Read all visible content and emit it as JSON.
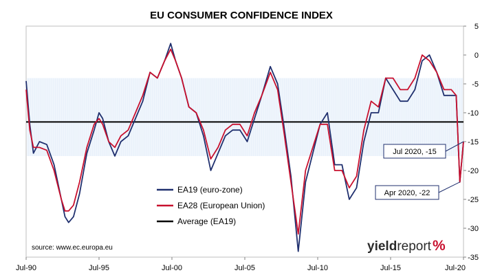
{
  "chart_data": {
    "type": "line",
    "title": "EU CONSUMER CONFIDENCE INDEX",
    "x_range": [
      "1990-07",
      "2020-07"
    ],
    "x_tick_labels": [
      "Jul-90",
      "Jul-95",
      "Jul-00",
      "Jul-05",
      "Jul-10",
      "Jul-15",
      "Jul-20"
    ],
    "x_tick_dates": [
      "1990-07",
      "1995-07",
      "2000-07",
      "2005-07",
      "2010-07",
      "2015-07",
      "2020-07"
    ],
    "ylim": [
      -35,
      5
    ],
    "y_ticks": [
      5,
      0,
      -5,
      -10,
      -15,
      -20,
      -25,
      -30,
      -35
    ],
    "y_axis_side": "right",
    "grid": false,
    "shaded_band": {
      "from": -17.5,
      "to": -4,
      "color": "#cfe0f3"
    },
    "legend": {
      "placement": "bottom-center"
    },
    "series": [
      {
        "name": "EA19 (euro-zone)",
        "color": "#1f2f6e",
        "points": [
          [
            "1990-07",
            -4.5
          ],
          [
            "1990-10",
            -12
          ],
          [
            "1991-01",
            -17
          ],
          [
            "1991-06",
            -15
          ],
          [
            "1991-12",
            -15.5
          ],
          [
            "1992-06",
            -19
          ],
          [
            "1992-12",
            -25
          ],
          [
            "1993-03",
            -28
          ],
          [
            "1993-06",
            -29
          ],
          [
            "1993-10",
            -28
          ],
          [
            "1994-03",
            -24
          ],
          [
            "1994-09",
            -17
          ],
          [
            "1995-03",
            -13
          ],
          [
            "1995-07",
            -10
          ],
          [
            "1995-10",
            -11
          ],
          [
            "1996-03",
            -15
          ],
          [
            "1996-08",
            -17.5
          ],
          [
            "1997-01",
            -15
          ],
          [
            "1997-07",
            -14
          ],
          [
            "1998-01",
            -11
          ],
          [
            "1998-07",
            -8
          ],
          [
            "1999-01",
            -3
          ],
          [
            "1999-07",
            -4
          ],
          [
            "2000-01",
            -1
          ],
          [
            "2000-06",
            2
          ],
          [
            "2000-10",
            -1
          ],
          [
            "2001-03",
            -4
          ],
          [
            "2001-09",
            -9
          ],
          [
            "2002-03",
            -10
          ],
          [
            "2002-09",
            -14
          ],
          [
            "2003-03",
            -20
          ],
          [
            "2003-09",
            -17
          ],
          [
            "2004-03",
            -14
          ],
          [
            "2004-09",
            -13
          ],
          [
            "2005-03",
            -13
          ],
          [
            "2005-09",
            -15
          ],
          [
            "2006-03",
            -11
          ],
          [
            "2006-09",
            -7
          ],
          [
            "2007-04",
            -2
          ],
          [
            "2007-10",
            -5
          ],
          [
            "2008-03",
            -12
          ],
          [
            "2008-09",
            -21
          ],
          [
            "2009-03",
            -34
          ],
          [
            "2009-09",
            -22
          ],
          [
            "2010-03",
            -17
          ],
          [
            "2010-09",
            -12
          ],
          [
            "2011-03",
            -10
          ],
          [
            "2011-09",
            -19
          ],
          [
            "2012-03",
            -19
          ],
          [
            "2012-09",
            -25
          ],
          [
            "2013-03",
            -23
          ],
          [
            "2013-09",
            -15
          ],
          [
            "2014-03",
            -10
          ],
          [
            "2014-09",
            -10
          ],
          [
            "2015-03",
            -4
          ],
          [
            "2015-09",
            -6
          ],
          [
            "2016-03",
            -8
          ],
          [
            "2016-09",
            -8
          ],
          [
            "2017-03",
            -6
          ],
          [
            "2017-09",
            -1
          ],
          [
            "2018-03",
            0
          ],
          [
            "2018-09",
            -3
          ],
          [
            "2019-03",
            -7
          ],
          [
            "2019-09",
            -7
          ],
          [
            "2020-01",
            -7
          ],
          [
            "2020-04",
            -22
          ],
          [
            "2020-07",
            -15
          ]
        ]
      },
      {
        "name": "EA28 (European Union)",
        "color": "#c8102e",
        "points": [
          [
            "1990-07",
            -6
          ],
          [
            "1990-10",
            -13
          ],
          [
            "1991-01",
            -16
          ],
          [
            "1991-06",
            -16
          ],
          [
            "1991-12",
            -16.5
          ],
          [
            "1992-06",
            -20
          ],
          [
            "1992-12",
            -25
          ],
          [
            "1993-03",
            -27
          ],
          [
            "1993-06",
            -27
          ],
          [
            "1993-10",
            -26
          ],
          [
            "1994-03",
            -22
          ],
          [
            "1994-09",
            -16
          ],
          [
            "1995-03",
            -12
          ],
          [
            "1995-07",
            -11
          ],
          [
            "1995-10",
            -12
          ],
          [
            "1996-03",
            -15
          ],
          [
            "1996-08",
            -16
          ],
          [
            "1997-01",
            -14
          ],
          [
            "1997-07",
            -13
          ],
          [
            "1998-01",
            -10
          ],
          [
            "1998-07",
            -7
          ],
          [
            "1999-01",
            -3
          ],
          [
            "1999-07",
            -4
          ],
          [
            "2000-01",
            -1
          ],
          [
            "2000-06",
            1
          ],
          [
            "2000-10",
            -1
          ],
          [
            "2001-03",
            -4
          ],
          [
            "2001-09",
            -9
          ],
          [
            "2002-03",
            -10
          ],
          [
            "2002-09",
            -13
          ],
          [
            "2003-03",
            -18
          ],
          [
            "2003-09",
            -16
          ],
          [
            "2004-03",
            -13
          ],
          [
            "2004-09",
            -12
          ],
          [
            "2005-03",
            -12
          ],
          [
            "2005-09",
            -14
          ],
          [
            "2006-03",
            -10
          ],
          [
            "2006-09",
            -7
          ],
          [
            "2007-04",
            -3
          ],
          [
            "2007-10",
            -6
          ],
          [
            "2008-03",
            -13
          ],
          [
            "2008-09",
            -22
          ],
          [
            "2009-03",
            -31
          ],
          [
            "2009-09",
            -20
          ],
          [
            "2010-03",
            -16
          ],
          [
            "2010-09",
            -12
          ],
          [
            "2011-03",
            -12
          ],
          [
            "2011-09",
            -20
          ],
          [
            "2012-03",
            -20
          ],
          [
            "2012-09",
            -23
          ],
          [
            "2013-03",
            -21
          ],
          [
            "2013-09",
            -13
          ],
          [
            "2014-03",
            -8
          ],
          [
            "2014-09",
            -9
          ],
          [
            "2015-03",
            -4
          ],
          [
            "2015-09",
            -4
          ],
          [
            "2016-03",
            -6
          ],
          [
            "2016-09",
            -6
          ],
          [
            "2017-03",
            -4
          ],
          [
            "2017-09",
            0
          ],
          [
            "2018-03",
            -1
          ],
          [
            "2018-09",
            -3
          ],
          [
            "2019-03",
            -6
          ],
          [
            "2019-09",
            -6
          ],
          [
            "2020-01",
            -7
          ],
          [
            "2020-04",
            -22
          ],
          [
            "2020-07",
            -15
          ]
        ]
      },
      {
        "name": "Average (EA19)",
        "color": "#000000",
        "points": [
          [
            "1990-07",
            -11.6
          ],
          [
            "2020-07",
            -11.6
          ]
        ]
      }
    ],
    "annotations": [
      {
        "text": "Jul 2020, -15",
        "date": "2020-07",
        "value": -15
      },
      {
        "text": "Apr 2020, -22",
        "date": "2020-04",
        "value": -22
      }
    ],
    "source": "source: www.ec.europa.eu"
  },
  "branding": {
    "logo_part1": "yield",
    "logo_part2": "report",
    "logo_part3": "%"
  }
}
